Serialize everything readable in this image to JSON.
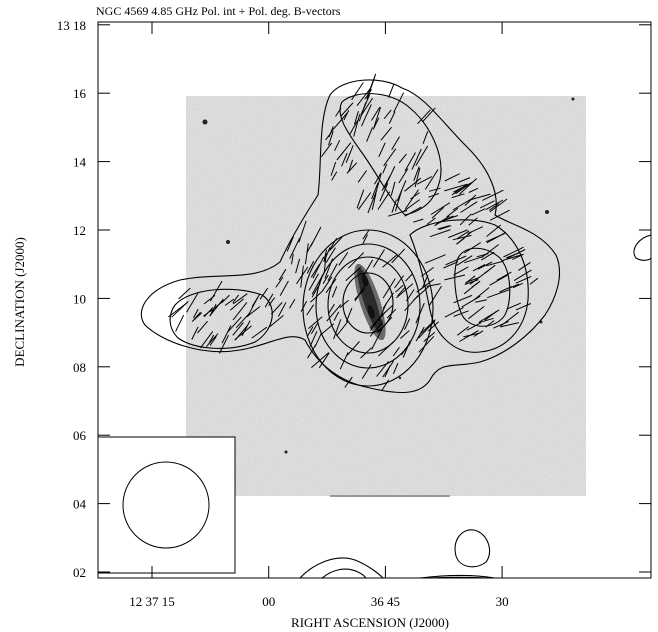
{
  "figure": {
    "title": "NGC 4569 4.85 GHz Pol. int + Pol. deg. B-vectors",
    "xlabel": "RIGHT ASCENSION (J2000)",
    "ylabel": "DECLINATION (J2000)",
    "y_ticks": [
      {
        "label": "13 18",
        "dec_arcmin": 18
      },
      {
        "label": "16",
        "dec_arcmin": 16
      },
      {
        "label": "14",
        "dec_arcmin": 14
      },
      {
        "label": "12",
        "dec_arcmin": 12
      },
      {
        "label": "10",
        "dec_arcmin": 10
      },
      {
        "label": "08",
        "dec_arcmin": 8
      },
      {
        "label": "06",
        "dec_arcmin": 6
      },
      {
        "label": "04",
        "dec_arcmin": 4
      },
      {
        "label": "02",
        "dec_arcmin": 2
      }
    ],
    "x_ticks": [
      {
        "label": "12 37 15",
        "ra_sec": 75
      },
      {
        "label": "00",
        "ra_sec": 60
      },
      {
        "label": "36 45",
        "ra_sec": 45
      },
      {
        "label": "30",
        "ra_sec": 30
      }
    ],
    "colors": {
      "axes": "#000000",
      "background_image": "#c9c9c9",
      "contours": "#000000"
    }
  }
}
